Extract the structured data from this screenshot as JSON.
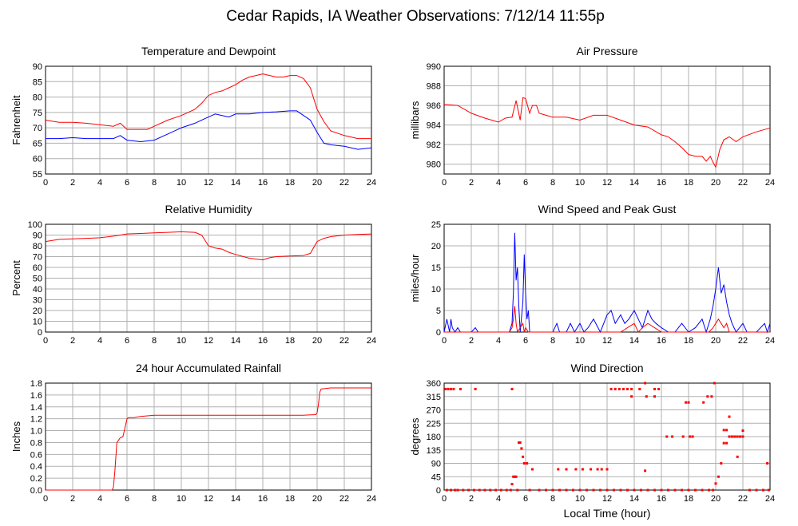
{
  "title": "Cedar Rapids, IA Weather Observations: 7/12/14 11:55p",
  "xlabel": "Local Time (hour)",
  "colors": {
    "red": "#ff0000",
    "blue": "#0000ff",
    "grid": "#b0b0b0",
    "frame": "#000000"
  },
  "chart_data": [
    {
      "type": "line",
      "title": "Temperature and Dewpoint",
      "ylabel": "Fahrenheit",
      "xlim": [
        0,
        24
      ],
      "ylim": [
        55,
        90
      ],
      "xticks": [
        0,
        2,
        4,
        6,
        8,
        10,
        12,
        14,
        16,
        18,
        20,
        22,
        24
      ],
      "yticks": [
        55,
        60,
        65,
        70,
        75,
        80,
        85,
        90
      ],
      "grid": true,
      "series": [
        {
          "color": "red",
          "style": "line",
          "x": [
            0,
            1,
            2,
            3,
            4,
            5,
            5.5,
            6,
            7,
            7.5,
            8,
            9,
            10,
            11,
            11.5,
            12,
            12.5,
            13,
            13.5,
            14,
            14.5,
            15,
            15.5,
            16,
            16.5,
            17,
            17.5,
            18,
            18.5,
            19,
            19.5,
            20,
            20.5,
            21,
            22,
            23,
            24
          ],
          "y": [
            72.5,
            71.8,
            71.8,
            71.5,
            71,
            70.5,
            71.5,
            69.5,
            69.5,
            69.5,
            70.5,
            72.5,
            74,
            76,
            78,
            80.5,
            81.5,
            82,
            83,
            84,
            85.5,
            86.5,
            87,
            87.5,
            87,
            86.5,
            86.5,
            87,
            87,
            86,
            83,
            76,
            72,
            69,
            67.5,
            66.5,
            66.5
          ]
        },
        {
          "color": "blue",
          "style": "line",
          "x": [
            0,
            1,
            2,
            3,
            4,
            5,
            5.5,
            6,
            7,
            8,
            9,
            10,
            11,
            12,
            12.5,
            13,
            13.5,
            14,
            15,
            16,
            17,
            18,
            18.5,
            19,
            19.5,
            20,
            20.5,
            21,
            22,
            23,
            24
          ],
          "y": [
            66.5,
            66.5,
            66.8,
            66.5,
            66.5,
            66.5,
            67.5,
            66,
            65.5,
            66,
            68,
            70,
            71.5,
            73.5,
            74.5,
            74,
            73.5,
            74.5,
            74.5,
            75,
            75.2,
            75.5,
            75.5,
            74,
            72.5,
            68.5,
            65,
            64.5,
            64,
            63,
            63.5
          ]
        }
      ]
    },
    {
      "type": "line",
      "title": "Air Pressure",
      "ylabel": "millibars",
      "xlim": [
        0,
        24
      ],
      "ylim": [
        979,
        990
      ],
      "xticks": [
        0,
        2,
        4,
        6,
        8,
        10,
        12,
        14,
        16,
        18,
        20,
        22,
        24
      ],
      "yticks": [
        980,
        982,
        984,
        986,
        988,
        990
      ],
      "grid": true,
      "series": [
        {
          "color": "red",
          "style": "line",
          "x": [
            0,
            1,
            2,
            3,
            4,
            4.5,
            5,
            5.3,
            5.6,
            5.8,
            6,
            6.3,
            6.5,
            6.8,
            7,
            7.5,
            8,
            9,
            10,
            11,
            12,
            13,
            14,
            15,
            16,
            16.5,
            17,
            17.5,
            18,
            18.5,
            19,
            19.3,
            19.6,
            19.8,
            20,
            20.3,
            20.6,
            21,
            21.5,
            22,
            23,
            24
          ],
          "y": [
            986.1,
            986,
            985.2,
            984.7,
            984.3,
            984.7,
            984.8,
            986.5,
            984.5,
            986.8,
            986.7,
            985.2,
            986,
            986,
            985.2,
            985,
            984.8,
            984.8,
            984.5,
            985,
            985,
            984.5,
            984,
            983.8,
            983,
            982.8,
            982.3,
            981.7,
            981,
            980.8,
            980.8,
            980.3,
            980.8,
            980.2,
            979.7,
            981.5,
            982.5,
            982.8,
            982.3,
            982.8,
            983.3,
            983.7
          ]
        }
      ]
    },
    {
      "type": "line",
      "title": "Relative Humidity",
      "ylabel": "Percent",
      "xlim": [
        0,
        24
      ],
      "ylim": [
        0,
        100
      ],
      "xticks": [
        0,
        2,
        4,
        6,
        8,
        10,
        12,
        14,
        16,
        18,
        20,
        22,
        24
      ],
      "yticks": [
        0,
        10,
        20,
        30,
        40,
        50,
        60,
        70,
        80,
        90,
        100
      ],
      "grid": true,
      "series": [
        {
          "color": "red",
          "style": "line",
          "x": [
            0,
            1,
            2,
            3,
            4,
            5,
            6,
            7,
            8,
            9,
            10,
            11,
            11.5,
            12,
            12.5,
            13,
            13.5,
            14,
            15,
            16,
            16.5,
            17,
            18,
            19,
            19.5,
            20,
            20.5,
            21,
            22,
            23,
            24
          ],
          "y": [
            84,
            86,
            86.5,
            87,
            87.5,
            89,
            91,
            91.5,
            92,
            92.5,
            93,
            92.5,
            90,
            80,
            78,
            77,
            74,
            72,
            68.5,
            67,
            69,
            70,
            70.5,
            71,
            73,
            84,
            87,
            88.5,
            90,
            90.5,
            91
          ]
        }
      ]
    },
    {
      "type": "line",
      "title": "Wind Speed and Peak Gust",
      "ylabel": "miles/hour",
      "xlim": [
        0,
        24
      ],
      "ylim": [
        0,
        25
      ],
      "xticks": [
        0,
        2,
        4,
        6,
        8,
        10,
        12,
        14,
        16,
        18,
        20,
        22,
        24
      ],
      "yticks": [
        0,
        5,
        10,
        15,
        20,
        25
      ],
      "grid": true,
      "series": [
        {
          "color": "blue",
          "style": "line",
          "x": [
            0,
            0.2,
            0.4,
            0.5,
            0.6,
            0.8,
            1,
            1.2,
            1.4,
            2,
            2.3,
            2.5,
            3,
            4,
            4.8,
            5,
            5.1,
            5.2,
            5.3,
            5.4,
            5.5,
            5.6,
            5.8,
            5.9,
            6,
            6.1,
            6.2,
            6.3,
            6.5,
            7,
            8,
            8.3,
            8.5,
            9,
            9.3,
            9.6,
            10,
            10.3,
            10.6,
            11,
            11.5,
            12,
            12.3,
            12.6,
            13,
            13.3,
            13.6,
            14,
            14.3,
            14.6,
            15,
            15.3,
            15.6,
            16,
            16.5,
            17,
            17.5,
            18,
            18.5,
            19,
            19.3,
            19.6,
            19.8,
            20,
            20.2,
            20.4,
            20.6,
            20.8,
            21,
            21.2,
            21.5,
            22,
            22.3,
            23,
            23.6,
            23.8,
            24
          ],
          "y": [
            0,
            3,
            0,
            3,
            1,
            0,
            1,
            0,
            0,
            0,
            1,
            0,
            0,
            0,
            0,
            2,
            9,
            23,
            12,
            15,
            6,
            0,
            7,
            18,
            9,
            3,
            5,
            0,
            0,
            0,
            0,
            2,
            0,
            0,
            2,
            0,
            2,
            0,
            1,
            3,
            0,
            4,
            5,
            2,
            4,
            2,
            3,
            5,
            3,
            1,
            5,
            3,
            2,
            1,
            0,
            0,
            2,
            0,
            1,
            3,
            0,
            3,
            6,
            10,
            15,
            9,
            11,
            7,
            4,
            2,
            0,
            2,
            0,
            0,
            2,
            0,
            2
          ]
        },
        {
          "color": "red",
          "style": "line",
          "x": [
            0,
            1,
            2,
            3,
            4,
            4.8,
            5,
            5.1,
            5.2,
            5.3,
            5.4,
            5.6,
            5.8,
            5.9,
            6,
            6.2,
            6.5,
            7,
            8,
            9,
            10,
            11,
            12,
            13,
            13.5,
            14,
            14.3,
            14.6,
            15,
            15.5,
            16,
            17,
            18,
            19,
            19.5,
            19.8,
            20,
            20.2,
            20.4,
            20.6,
            20.8,
            21,
            21.2,
            22,
            23,
            24
          ],
          "y": [
            0,
            0,
            0,
            0,
            0,
            0,
            1,
            3,
            6,
            2,
            0,
            1,
            2,
            0,
            1,
            0,
            0,
            0,
            0,
            0,
            0,
            0,
            0,
            0,
            1,
            2,
            0,
            1,
            2,
            1,
            0,
            0,
            0,
            0,
            0,
            1,
            2,
            3,
            2,
            1,
            2,
            0,
            0,
            0,
            0,
            0
          ]
        }
      ]
    },
    {
      "type": "line",
      "title": "24 hour Accumulated Rainfall",
      "ylabel": "Inches",
      "xlim": [
        0,
        24
      ],
      "ylim": [
        0,
        1.8
      ],
      "xticks": [
        0,
        2,
        4,
        6,
        8,
        10,
        12,
        14,
        16,
        18,
        20,
        22,
        24
      ],
      "yticks": [
        "0.0",
        "0.2",
        "0.4",
        "0.6",
        "0.8",
        "1.0",
        "1.2",
        "1.4",
        "1.6",
        "1.8"
      ],
      "grid": true,
      "series": [
        {
          "color": "red",
          "style": "line",
          "x": [
            0,
            4.9,
            5.0,
            5.1,
            5.25,
            5.5,
            5.7,
            5.9,
            6.0,
            6.1,
            6.5,
            7,
            8,
            9,
            10,
            11,
            12,
            13,
            14,
            15,
            16,
            17,
            18,
            19,
            19.9,
            20.0,
            20.1,
            20.2,
            20.3,
            21,
            22,
            23,
            24
          ],
          "y": [
            0,
            0,
            0.05,
            0.3,
            0.8,
            0.88,
            0.9,
            1.1,
            1.2,
            1.22,
            1.22,
            1.24,
            1.26,
            1.26,
            1.26,
            1.26,
            1.26,
            1.26,
            1.26,
            1.26,
            1.26,
            1.26,
            1.26,
            1.26,
            1.27,
            1.3,
            1.45,
            1.65,
            1.7,
            1.72,
            1.72,
            1.72,
            1.72
          ]
        }
      ]
    },
    {
      "type": "scatter",
      "title": "Wind Direction",
      "ylabel": "degrees",
      "xlim": [
        0,
        24
      ],
      "ylim": [
        0,
        360
      ],
      "xticks": [
        0,
        2,
        4,
        6,
        8,
        10,
        12,
        14,
        16,
        18,
        20,
        22,
        24
      ],
      "yticks": [
        0,
        45,
        90,
        135,
        180,
        225,
        270,
        315,
        360
      ],
      "grid": true,
      "series": [
        {
          "color": "red",
          "style": "points",
          "x": [
            0.1,
            0.3,
            0.5,
            0.7,
            1.2,
            2.3,
            5.0,
            12.3,
            12.6,
            12.9,
            13.2,
            13.5,
            13.8,
            14.4,
            14.8,
            15.5,
            15.8,
            17.8,
            18.0,
            19.1,
            19.4,
            19.7,
            19.9,
            0.2,
            0.5,
            0.8,
            1.0,
            1.4,
            1.8,
            2.2,
            2.6,
            3.0,
            3.4,
            3.8,
            4.2,
            4.6,
            4.9,
            5.0,
            5.1,
            5.2,
            5.3,
            5.4,
            5.5,
            5.6,
            5.7,
            5.8,
            5.9,
            6.1,
            6.3,
            6.5,
            7.0,
            7.5,
            8.0,
            8.5,
            9.0,
            9.5,
            10.0,
            10.5,
            11.0,
            11.5,
            12.0,
            12.5,
            13.0,
            13.5,
            14.0,
            14.5,
            15.0,
            15.5,
            16.0,
            16.5,
            17.0,
            17.5,
            18.0,
            18.5,
            19.0,
            19.5,
            19.8,
            20.0,
            20.2,
            20.4,
            20.6,
            20.8,
            21.0,
            21.2,
            21.4,
            21.6,
            21.8,
            22.0,
            22.5,
            23.0,
            23.5,
            23.9,
            8.4,
            9.0,
            9.7,
            10.2,
            10.8,
            11.3,
            11.6,
            12.0,
            13.8,
            14.8,
            14.9,
            15.5,
            16.0,
            16.4,
            16.8,
            17.6,
            18.1,
            18.3,
            20.6,
            20.8,
            21.0,
            21.2,
            21.4,
            21.6,
            21.8,
            22.0,
            23.8
          ],
          "y": [
            340,
            340,
            340,
            340,
            340,
            340,
            340,
            340,
            340,
            340,
            340,
            340,
            340,
            340,
            360,
            340,
            340,
            295,
            295,
            295,
            315,
            315,
            360,
            0,
            0,
            0,
            0,
            0,
            0,
            0,
            0,
            0,
            0,
            0,
            0,
            0,
            0,
            20,
            45,
            45,
            45,
            0,
            160,
            160,
            140,
            112,
            90,
            90,
            0,
            70,
            0,
            0,
            0,
            0,
            0,
            0,
            0,
            0,
            0,
            0,
            0,
            0,
            0,
            0,
            0,
            0,
            0,
            0,
            0,
            0,
            0,
            0,
            0,
            0,
            0,
            0,
            0,
            22,
            45,
            90,
            158,
            158,
            180,
            180,
            180,
            180,
            180,
            200,
            0,
            0,
            0,
            0,
            70,
            70,
            70,
            70,
            70,
            70,
            70,
            70,
            315,
            65,
            315,
            315,
            0,
            180,
            180,
            180,
            180,
            180,
            202,
            202,
            247,
            180,
            180,
            112,
            180,
            180,
            90
          ]
        }
      ]
    }
  ]
}
